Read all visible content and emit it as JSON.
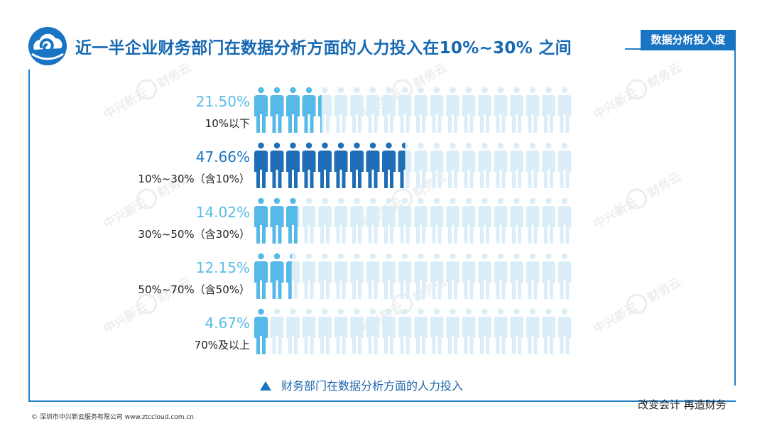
{
  "header": {
    "title": "近一半企业财务部门在数据分析方面的人力投入在10%~30% 之间",
    "badge": "数据分析投入度"
  },
  "legend": {
    "label": "财务部门在数据分析方面的人力投入"
  },
  "slogan": "改变会计  再造财务",
  "footer": "© 深圳市中兴新云服务有限公司   www.ztccloud.com.cn",
  "watermark": {
    "text": "中兴新云",
    "brand": "财务云"
  },
  "colors": {
    "title": "#1668b3",
    "accent": "#1a74c4",
    "frame": "#1f7fc9",
    "highlight_fill": "#1f6eb8",
    "highlight_value": "#1f75c0",
    "normal_fill": "#55b9ea",
    "normal_value": "#5bbce8",
    "empty_fill": "#dbeef8"
  },
  "icons": {
    "logo": "cloud-swirl-logo",
    "figure": "person-icon",
    "legend": "triangle-up-icon"
  },
  "chart_data": {
    "type": "bar",
    "categories": [
      "10%以下",
      "10%~30%（含10%）",
      "30%~50%（含30%）",
      "50%~70%（含50%）",
      "70%及以上"
    ],
    "values": [
      21.5,
      47.66,
      14.02,
      12.15,
      4.67
    ],
    "value_labels": [
      "21.50%",
      "47.66%",
      "14.02%",
      "12.15%",
      "4.67%"
    ],
    "highlight_index": 1,
    "xlim": [
      0,
      100
    ],
    "units": "%",
    "series": [
      {
        "name": "财务部门在数据分析方面的人力投入",
        "values": [
          21.5,
          47.66,
          14.02,
          12.15,
          4.67
        ]
      }
    ]
  }
}
